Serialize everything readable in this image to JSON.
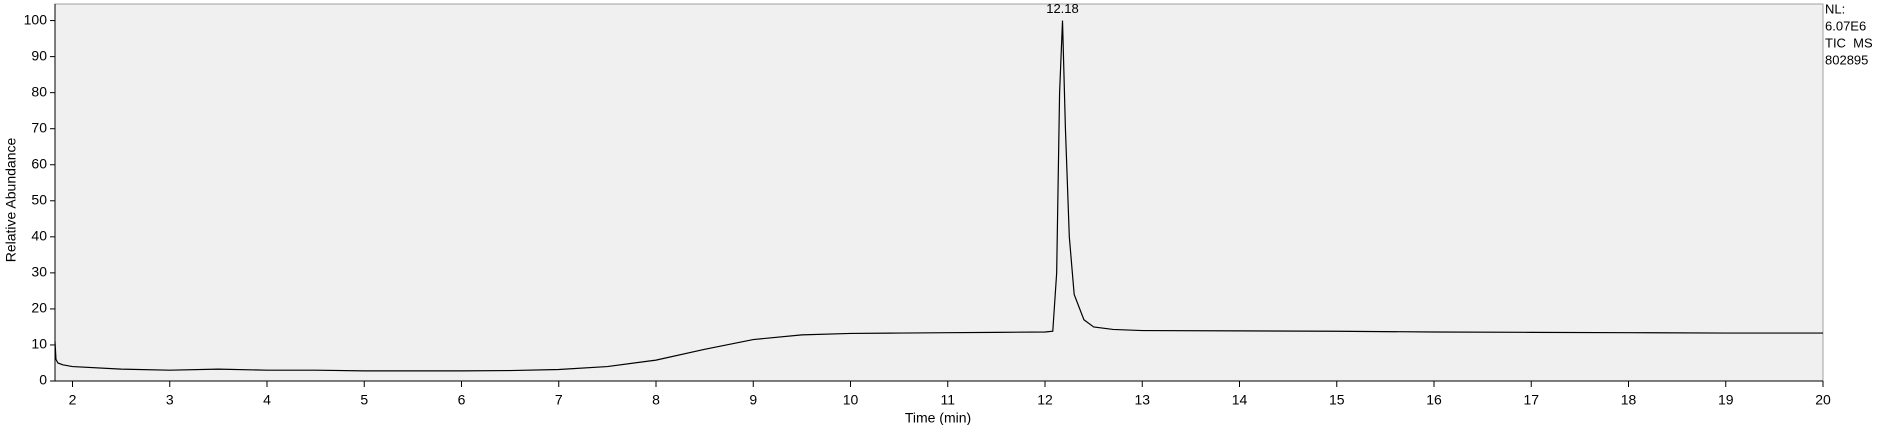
{
  "chart_data": {
    "type": "line",
    "xlabel": "Time (min)",
    "ylabel": "Relative Abundance",
    "x": [
      1.82,
      1.83,
      1.85,
      1.9,
      2.0,
      2.5,
      3.0,
      3.5,
      4.0,
      4.5,
      5.0,
      5.5,
      6.0,
      6.5,
      7.0,
      7.5,
      8.0,
      8.5,
      9.0,
      9.5,
      10.0,
      10.5,
      11.0,
      11.5,
      12.0,
      12.08,
      12.12,
      12.15,
      12.18,
      12.21,
      12.25,
      12.3,
      12.4,
      12.5,
      12.7,
      13.0,
      14.0,
      15.0,
      16.0,
      17.0,
      18.0,
      19.0,
      20.0
    ],
    "series": [
      {
        "color": "#000000",
        "values": [
          11,
          6,
          5,
          4.5,
          4,
          3.3,
          3,
          3.3,
          3,
          3,
          2.8,
          2.8,
          2.8,
          2.9,
          3.2,
          4,
          5.8,
          8.8,
          11.5,
          12.8,
          13.2,
          13.3,
          13.4,
          13.5,
          13.6,
          13.8,
          30,
          80,
          100,
          70,
          40,
          24,
          17,
          15,
          14.3,
          14,
          13.9,
          13.8,
          13.6,
          13.5,
          13.4,
          13.3,
          13.3
        ]
      }
    ],
    "xlim": [
      1.82,
      20
    ],
    "ylim": [
      0,
      104.6
    ],
    "xticks": [
      2,
      3,
      4,
      5,
      6,
      7,
      8,
      9,
      10,
      11,
      12,
      13,
      14,
      15,
      16,
      17,
      18,
      19,
      20
    ],
    "yticks": [
      0,
      10,
      20,
      30,
      40,
      50,
      60,
      70,
      80,
      90,
      100
    ],
    "annotations": [
      {
        "x": 12.18,
        "y": 100,
        "text": "12.18"
      }
    ],
    "info_lines": [
      "NL:",
      "6.07E6",
      "TIC  MS",
      "802895"
    ]
  }
}
